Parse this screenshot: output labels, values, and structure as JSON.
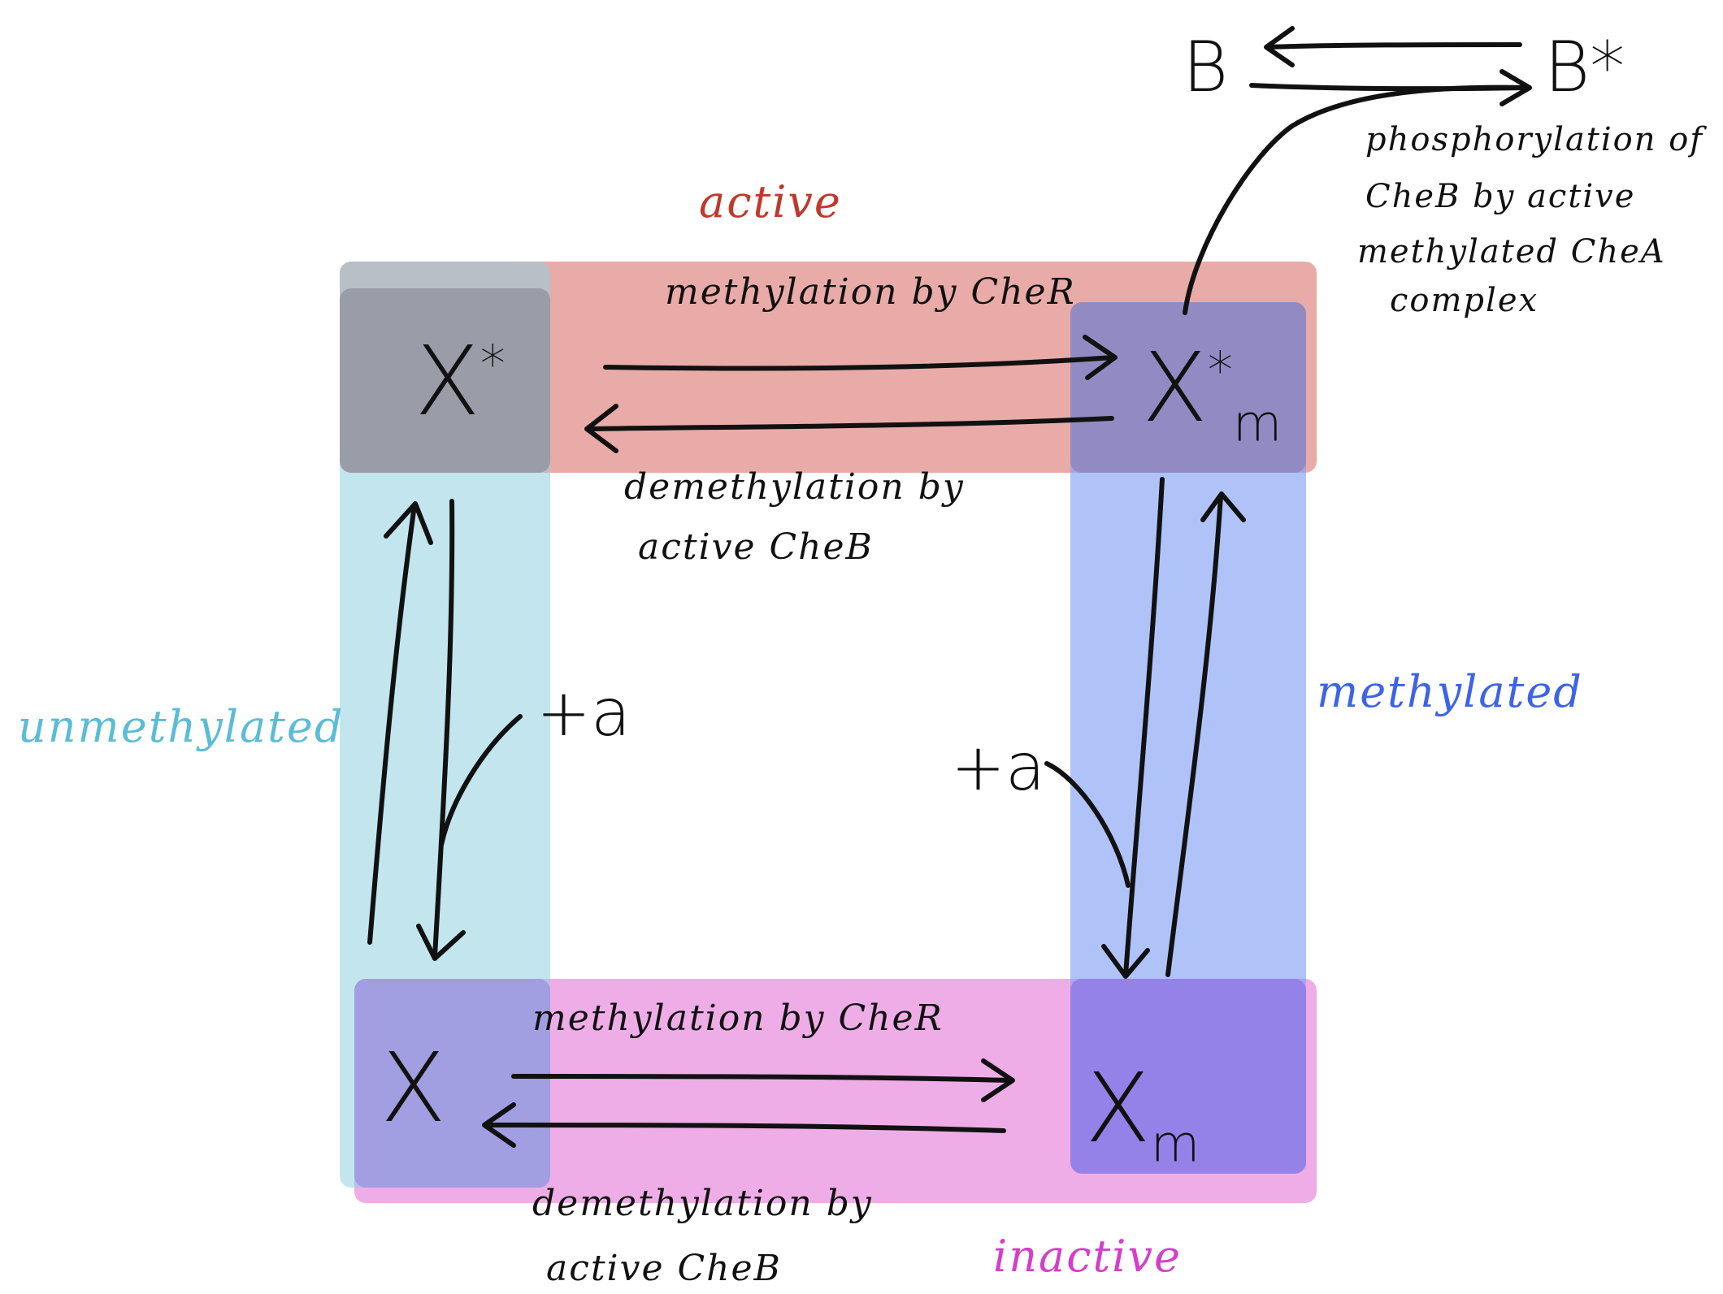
{
  "colors": {
    "active": "#e08a86",
    "inactive": "#e991df",
    "unmethylated": "#8fcfe0",
    "methylated": "#7f9ef5",
    "active_label": "#c0392b",
    "inactive_label": "#d63dc9",
    "unmethylated_label": "#5bbcd6",
    "methylated_label": "#3d63e8"
  },
  "labels": {
    "active": "active",
    "inactive": "inactive",
    "unmethylated": "unmethylated",
    "methylated": "methylated"
  },
  "nodes": {
    "x_star": {
      "base": "X",
      "sup": "*",
      "sub": ""
    },
    "xm_star": {
      "base": "X",
      "sup": "*",
      "sub": "m"
    },
    "x": {
      "base": "X",
      "sup": "",
      "sub": ""
    },
    "xm": {
      "base": "X",
      "sup": "",
      "sub": "m"
    }
  },
  "edges": {
    "top_methylation": "methylation by CheR",
    "top_demethylation_line1": "demethylation by",
    "top_demethylation_line2": "active CheB",
    "bottom_methylation": "methylation by CheR",
    "bottom_demethylation_line1": "demethylation by",
    "bottom_demethylation_line2": "active CheB",
    "left_plus_a": "+a",
    "right_plus_a": "+a"
  },
  "cheb": {
    "b": "B",
    "b_star": "B*",
    "note_line1": "phosphorylation of",
    "note_line2": "CheB by active",
    "note_line3": "methylated CheA",
    "note_line4": "complex"
  }
}
